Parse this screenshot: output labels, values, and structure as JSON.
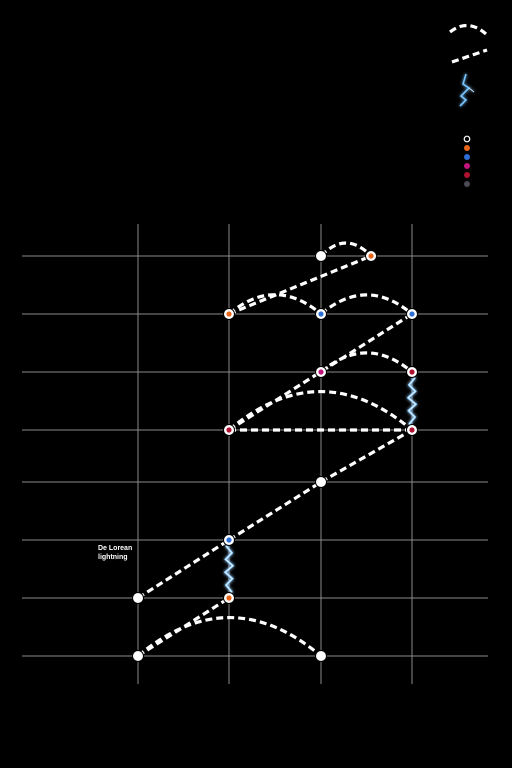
{
  "annotation": "De Lorean\nlightning",
  "colors": {
    "background": "#000000",
    "grid": "#8a8a8a",
    "path": "#ffffff",
    "lightning": "#79c4ff",
    "node_white": "#ffffff",
    "node_orange": "#e8651a",
    "node_blue": "#2d6fd6",
    "node_magenta": "#c0157a",
    "node_crimson": "#b01232",
    "node_gray": "#4a4a55"
  },
  "legend_swatches": [
    "white",
    "orange",
    "blue",
    "magenta",
    "crimson",
    "gray"
  ],
  "nodes": [
    {
      "id": "n1",
      "col": 0,
      "row": 0,
      "color": "white"
    },
    {
      "id": "n2",
      "col": 2,
      "row": 0,
      "color": "white"
    },
    {
      "id": "n3",
      "col": 1,
      "row": 1,
      "color": "orange"
    },
    {
      "id": "n4",
      "col": 0,
      "row": 1,
      "color": "white"
    },
    {
      "id": "n5",
      "col": 1,
      "row": 2,
      "color": "blue"
    },
    {
      "id": "n6",
      "col": 2,
      "row": 3,
      "color": "white"
    },
    {
      "id": "n7",
      "col": 1,
      "row": 4,
      "color": "crimson"
    },
    {
      "id": "n8",
      "col": 3,
      "row": 4,
      "color": "crimson"
    },
    {
      "id": "n9",
      "col": 2,
      "row": 5,
      "color": "magenta"
    },
    {
      "id": "n10",
      "col": 3,
      "row": 5,
      "color": "crimson"
    },
    {
      "id": "n11",
      "col": 1,
      "row": 6,
      "color": "orange"
    },
    {
      "id": "n12",
      "col": 2,
      "row": 6,
      "color": "blue"
    },
    {
      "id": "n13",
      "col": 3,
      "row": 6,
      "color": "blue"
    },
    {
      "id": "n14",
      "col": 2,
      "row": 7,
      "color": "white"
    },
    {
      "id": "n15",
      "col": 2.55,
      "row": 7,
      "color": "orange"
    }
  ],
  "links": [
    {
      "from": "n1",
      "to": "n3"
    },
    {
      "from": "n4",
      "to": "n5"
    },
    {
      "from": "n5",
      "to": "n6"
    },
    {
      "from": "n6",
      "to": "n8"
    },
    {
      "from": "n7",
      "to": "n8"
    },
    {
      "from": "n7",
      "to": "n13"
    },
    {
      "from": "n11",
      "to": "n15"
    }
  ],
  "arcs": [
    {
      "from": "n1",
      "to": "n2"
    },
    {
      "from": "n7",
      "to": "n8"
    },
    {
      "from": "n9",
      "to": "n10"
    },
    {
      "from": "n11",
      "to": "n12"
    },
    {
      "from": "n12",
      "to": "n13"
    },
    {
      "from": "n14",
      "to": "n15"
    }
  ],
  "lightning": [
    {
      "from": "n3",
      "to": "n5"
    },
    {
      "from": "n10",
      "to": "n8"
    }
  ]
}
